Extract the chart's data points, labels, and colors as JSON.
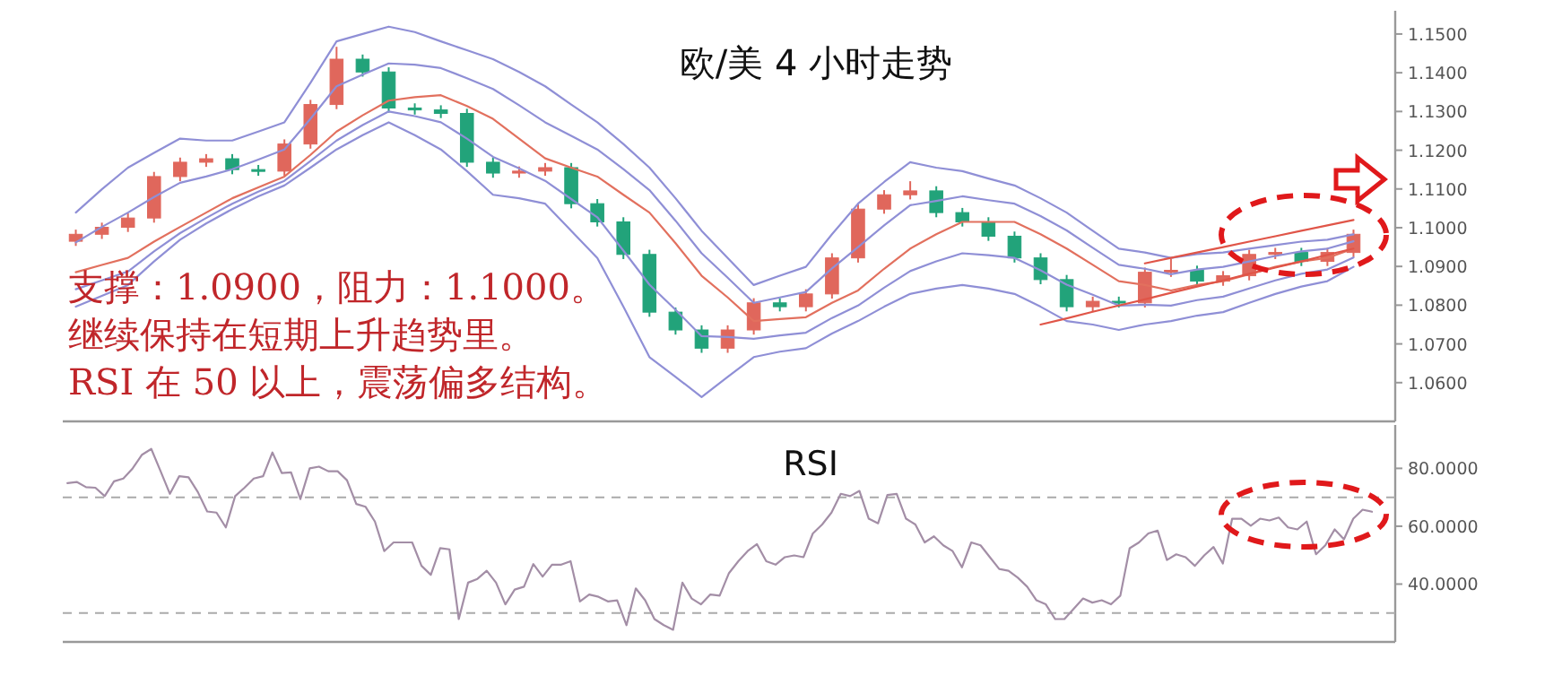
{
  "chart_data": [
    {
      "type": "candlestick",
      "title": "欧/美 4 小时走势",
      "categories": [
        null,
        null,
        null,
        null,
        null,
        null,
        null,
        null,
        null,
        null,
        null,
        null,
        null,
        null,
        null,
        null,
        null,
        null,
        null,
        null,
        null,
        null,
        null,
        null,
        null,
        null,
        null,
        null,
        null,
        null,
        null,
        null,
        null,
        null,
        null,
        null,
        null,
        null,
        null,
        null,
        null,
        null,
        null,
        null,
        null,
        null,
        null,
        null,
        null,
        null
      ],
      "ohlc": [
        [
          1.0965,
          1.0995,
          1.0953,
          1.0983
        ],
        [
          1.0983,
          1.1013,
          1.0971,
          1.1001
        ],
        [
          1.1001,
          1.1037,
          1.0989,
          1.1025
        ],
        [
          1.1025,
          1.1144,
          1.1013,
          1.1132
        ],
        [
          1.1132,
          1.1181,
          1.112,
          1.1169
        ],
        [
          1.1169,
          1.119,
          1.1157,
          1.1178
        ],
        [
          1.1178,
          1.119,
          1.1138,
          1.115
        ],
        [
          1.115,
          1.1162,
          1.1134,
          1.1146
        ],
        [
          1.1146,
          1.1228,
          1.1134,
          1.1216
        ],
        [
          1.1216,
          1.133,
          1.1204,
          1.1318
        ],
        [
          1.1318,
          1.1467,
          1.1306,
          1.1435
        ],
        [
          1.1435,
          1.1447,
          1.139,
          1.1402
        ],
        [
          1.1402,
          1.1414,
          1.1297,
          1.1309
        ],
        [
          1.1309,
          1.1321,
          1.1292,
          1.1304
        ],
        [
          1.1304,
          1.1316,
          1.1283,
          1.1295
        ],
        [
          1.1295,
          1.1307,
          1.1157,
          1.1169
        ],
        [
          1.1169,
          1.1181,
          1.1129,
          1.1141
        ],
        [
          1.1141,
          1.1158,
          1.1129,
          1.1146
        ],
        [
          1.1146,
          1.1167,
          1.1134,
          1.1155
        ],
        [
          1.1155,
          1.1167,
          1.105,
          1.1062
        ],
        [
          1.1062,
          1.1074,
          1.1003,
          1.1015
        ],
        [
          1.1015,
          1.1027,
          1.0919,
          1.0931
        ],
        [
          1.0931,
          1.0943,
          1.077,
          1.0782
        ],
        [
          1.0782,
          1.0794,
          1.0724,
          1.0736
        ],
        [
          1.0736,
          1.0748,
          1.0677,
          1.0689
        ],
        [
          1.0689,
          1.0748,
          1.0677,
          1.0736
        ],
        [
          1.0736,
          1.0818,
          1.0724,
          1.0806
        ],
        [
          1.0806,
          1.0818,
          1.0784,
          1.0796
        ],
        [
          1.0796,
          1.0841,
          1.0784,
          1.0829
        ],
        [
          1.0829,
          1.0934,
          1.0817,
          1.0922
        ],
        [
          1.0922,
          1.106,
          1.091,
          1.1048
        ],
        [
          1.1048,
          1.1097,
          1.1036,
          1.1085
        ],
        [
          1.1085,
          1.112,
          1.1073,
          1.1095
        ],
        [
          1.1095,
          1.1107,
          1.1027,
          1.1039
        ],
        [
          1.1039,
          1.1051,
          1.1003,
          1.1015
        ],
        [
          1.1015,
          1.1027,
          1.0966,
          1.0978
        ],
        [
          1.0978,
          1.099,
          1.091,
          1.0922
        ],
        [
          1.0922,
          1.0934,
          1.0854,
          1.0866
        ],
        [
          1.0866,
          1.0878,
          1.0784,
          1.0796
        ],
        [
          1.0796,
          1.0822,
          1.0784,
          1.081
        ],
        [
          1.081,
          1.0822,
          1.0794,
          1.0806
        ],
        [
          1.0806,
          1.0897,
          1.0794,
          1.0885
        ],
        [
          1.0885,
          1.092,
          1.0873,
          1.089
        ],
        [
          1.089,
          1.0902,
          1.085,
          1.0862
        ],
        [
          1.0862,
          1.0888,
          1.085,
          1.0876
        ],
        [
          1.0876,
          1.0943,
          1.0864,
          1.0931
        ],
        [
          1.0931,
          1.0948,
          1.0919,
          1.0936
        ],
        [
          1.0936,
          1.0948,
          1.0901,
          1.0913
        ],
        [
          1.0913,
          1.0948,
          1.0901,
          1.0936
        ],
        [
          1.0936,
          1.0995,
          1.0924,
          1.0983
        ]
      ],
      "colors": [
        "#e0675c",
        "#e0675c",
        "#e0675c",
        "#e0675c",
        "#e0675c",
        "#e0675c",
        "#22a37a",
        "#22a37a",
        "#e0675c",
        "#e0675c",
        "#e0675c",
        "#22a37a",
        "#22a37a",
        "#22a37a",
        "#22a37a",
        "#22a37a",
        "#22a37a",
        "#e0675c",
        "#e0675c",
        "#22a37a",
        "#22a37a",
        "#22a37a",
        "#22a37a",
        "#22a37a",
        "#22a37a",
        "#e0675c",
        "#e0675c",
        "#22a37a",
        "#e0675c",
        "#e0675c",
        "#e0675c",
        "#e0675c",
        "#e0675c",
        "#22a37a",
        "#22a37a",
        "#22a37a",
        "#22a37a",
        "#22a37a",
        "#22a37a",
        "#e0675c",
        "#22a37a",
        "#e0675c",
        "#e0675c",
        "#22a37a",
        "#e0675c",
        "#e0675c",
        "#e0675c",
        "#22a37a",
        "#e0675c",
        "#e0675c"
      ],
      "series": [
        {
          "type": "line",
          "color": "#8f8fd6",
          "values": [
            1.1039,
            1.1099,
            1.1155,
            1.1193,
            1.123,
            1.1225,
            1.1225,
            1.1248,
            1.1272,
            1.1374,
            1.1481,
            1.15,
            1.1519,
            1.1505,
            1.1481,
            1.1458,
            1.1435,
            1.1402,
            1.1365,
            1.1318,
            1.1272,
            1.1216,
            1.1155,
            1.1076,
            1.0992,
            1.0922,
            1.0852,
            1.0876,
            1.0899,
            1.0983,
            1.1062,
            1.1118,
            1.1169,
            1.1155,
            1.1146,
            1.1127,
            1.1109,
            1.1076,
            1.1039,
            1.0992,
            1.0946,
            1.0936,
            1.0922,
            1.0932,
            1.0936,
            1.0946,
            1.0955,
            1.0964,
            1.0969,
            1.0983
          ]
        },
        {
          "type": "line",
          "color": "#8f8fd6",
          "values": [
            1.0962,
            1.1002,
            1.1039,
            1.1079,
            1.1116,
            1.1132,
            1.1151,
            1.1176,
            1.1202,
            1.1281,
            1.1365,
            1.1395,
            1.1424,
            1.1421,
            1.1412,
            1.1386,
            1.1358,
            1.1316,
            1.1272,
            1.1237,
            1.1202,
            1.1151,
            1.1097,
            1.1018,
            1.0934,
            1.0871,
            1.0806,
            1.082,
            1.0834,
            1.0895,
            1.095,
            1.1006,
            1.1058,
            1.1069,
            1.1081,
            1.1071,
            1.1062,
            1.103,
            1.0993,
            1.0948,
            1.0904,
            1.0894,
            1.088,
            1.0892,
            1.0899,
            1.0913,
            1.0927,
            1.0939,
            1.0946,
            1.0965
          ]
        },
        {
          "type": "line",
          "color": "#e2705e",
          "values": [
            1.0885,
            1.0904,
            1.0922,
            1.0964,
            1.1002,
            1.1039,
            1.1076,
            1.1104,
            1.1132,
            1.1188,
            1.1248,
            1.129,
            1.1328,
            1.1337,
            1.1342,
            1.1314,
            1.1281,
            1.123,
            1.1179,
            1.1155,
            1.1132,
            1.1085,
            1.1039,
            1.096,
            1.0876,
            1.082,
            1.0759,
            1.0764,
            1.0769,
            1.0806,
            1.0838,
            1.0894,
            1.0946,
            1.0983,
            1.1015,
            1.1015,
            1.1015,
            1.0983,
            1.0946,
            1.0904,
            1.0862,
            1.0852,
            1.0838,
            1.0852,
            1.0862,
            1.088,
            1.0899,
            1.0913,
            1.0922,
            1.0946
          ]
        },
        {
          "type": "line",
          "color": "#8f8fd6",
          "values": [
            1.0841,
            1.0864,
            1.0887,
            1.0939,
            1.0986,
            1.1025,
            1.1062,
            1.1093,
            1.1121,
            1.1172,
            1.1225,
            1.1265,
            1.13,
            1.1288,
            1.1272,
            1.123,
            1.1183,
            1.1153,
            1.1121,
            1.1074,
            1.1027,
            1.0941,
            1.0853,
            1.0788,
            1.072,
            1.0718,
            1.0713,
            1.0722,
            1.0729,
            1.0767,
            1.0799,
            1.0845,
            1.0888,
            1.0913,
            1.0934,
            1.0929,
            1.0922,
            1.089,
            1.0853,
            1.0827,
            1.0799,
            1.0801,
            1.0799,
            1.0813,
            1.0822,
            1.0843,
            1.0864,
            1.0881,
            1.0892,
            1.0923
          ]
        },
        {
          "type": "line",
          "color": "#8f8fd6",
          "values": [
            1.0796,
            1.0824,
            1.0852,
            1.0913,
            1.0969,
            1.1011,
            1.1048,
            1.1081,
            1.1109,
            1.1155,
            1.1202,
            1.1239,
            1.1272,
            1.1239,
            1.1202,
            1.1146,
            1.1085,
            1.1076,
            1.1062,
            1.0992,
            1.0922,
            1.0796,
            1.0666,
            1.0615,
            1.0563,
            1.0615,
            1.0666,
            1.068,
            1.0689,
            1.0727,
            1.0759,
            1.0796,
            1.0829,
            1.0843,
            1.0852,
            1.0843,
            1.0829,
            1.0796,
            1.0759,
            1.075,
            1.0736,
            1.075,
            1.0759,
            1.0773,
            1.0782,
            1.0806,
            1.0829,
            1.0848,
            1.0862,
            1.0899
          ]
        },
        {
          "type": "line",
          "color": "#e05548",
          "values": [
            null,
            null,
            null,
            null,
            null,
            null,
            null,
            null,
            null,
            null,
            null,
            null,
            null,
            null,
            null,
            null,
            null,
            null,
            null,
            null,
            null,
            null,
            null,
            null,
            null,
            null,
            null,
            null,
            null,
            null,
            null,
            null,
            null,
            null,
            null,
            null,
            null,
            null,
            null,
            null,
            null,
            1.0908,
            1.0922,
            1.0936,
            1.095,
            1.0964,
            1.0978,
            1.0992,
            1.1006,
            1.102
          ]
        },
        {
          "type": "line",
          "color": "#e05548",
          "values": [
            null,
            null,
            null,
            null,
            null,
            null,
            null,
            null,
            null,
            null,
            null,
            null,
            null,
            null,
            null,
            null,
            null,
            null,
            null,
            null,
            null,
            null,
            null,
            null,
            null,
            null,
            null,
            null,
            null,
            null,
            null,
            null,
            null,
            null,
            null,
            null,
            null,
            1.075,
            1.0766,
            1.0783,
            1.0799,
            1.0815,
            1.0832,
            1.0848,
            1.0864,
            1.0881,
            1.0897,
            1.0913,
            1.093,
            1.0946
          ]
        }
      ],
      "ylim": [
        1.05,
        1.156
      ],
      "yticks": [
        {
          "value": 1.06,
          "label": "1.0600"
        },
        {
          "value": 1.07,
          "label": "1.0700"
        },
        {
          "value": 1.08,
          "label": "1.0800"
        },
        {
          "value": 1.09,
          "label": "1.0900"
        },
        {
          "value": 1.1,
          "label": "1.1000"
        },
        {
          "value": 1.11,
          "label": "1.1100"
        },
        {
          "value": 1.12,
          "label": "1.1200"
        },
        {
          "value": 1.13,
          "label": "1.1300"
        },
        {
          "value": 1.14,
          "label": "1.1400"
        },
        {
          "value": 1.15,
          "label": "1.1500"
        }
      ],
      "annotations": [
        "支撑：1.0900，阻力：1.1000。",
        "继续保持在短期上升趋势里。",
        "RSI 在 50 以上，震荡偏多结构。"
      ],
      "tick_labels": "y"
    },
    {
      "type": "line",
      "title": "RSI",
      "categories": [
        null,
        null,
        null,
        null,
        null,
        null,
        null,
        null,
        null,
        null,
        null,
        null,
        null,
        null,
        null,
        null,
        null,
        null,
        null,
        null,
        null,
        null,
        null,
        null,
        null,
        null,
        null,
        null,
        null,
        null,
        null,
        null,
        null,
        null,
        null,
        null,
        null,
        null,
        null,
        null,
        null,
        null,
        null,
        null,
        null,
        null,
        null,
        null,
        null,
        null,
        null,
        null,
        null,
        null,
        null,
        null,
        null,
        null,
        null,
        null,
        null,
        null,
        null,
        null,
        null,
        null,
        null,
        null,
        null,
        null,
        null,
        null,
        null,
        null,
        null,
        null,
        null,
        null,
        null,
        null,
        null,
        null,
        null,
        null,
        null,
        null,
        null,
        null,
        null,
        null,
        null,
        null,
        null,
        null,
        null,
        null,
        null,
        null,
        null,
        null,
        null,
        null,
        null,
        null,
        null,
        null,
        null,
        null,
        null,
        null,
        null,
        null,
        null,
        null,
        null,
        null,
        null,
        null,
        null,
        null,
        null,
        null,
        null,
        null,
        null,
        null,
        null,
        null,
        null,
        null,
        null,
        null,
        null,
        null,
        null,
        null,
        null,
        null,
        null,
        null,
        null
      ],
      "series": [
        {
          "color": "#a38ea6",
          "values": [
            74.9,
            75.3,
            73.5,
            73.3,
            70.4,
            75.5,
            76.5,
            80,
            84.7,
            86.7,
            79,
            71.2,
            77.3,
            76.9,
            71.8,
            65.1,
            64.7,
            59.6,
            70.4,
            73.3,
            76.5,
            77.3,
            85.5,
            78.4,
            78.6,
            69.4,
            80,
            80.6,
            79,
            79,
            75.9,
            67.7,
            66.7,
            61.6,
            51.4,
            54.4,
            54.4,
            54.4,
            46.3,
            43.2,
            52.4,
            52,
            27.9,
            40.5,
            41.8,
            44.6,
            40.5,
            33,
            38.1,
            39.1,
            46.9,
            42.6,
            46.7,
            46.7,
            47.9,
            34,
            36.4,
            35.6,
            34,
            34.4,
            25.8,
            38.5,
            34.4,
            27.9,
            25.8,
            24.2,
            40.5,
            35,
            33,
            36.4,
            36,
            43.8,
            47.9,
            51.4,
            53.8,
            47.9,
            46.7,
            49.3,
            49.9,
            49.3,
            57.5,
            60.6,
            64.7,
            71.2,
            70.4,
            72.2,
            62.6,
            61,
            70.8,
            71.2,
            62.6,
            60.6,
            54.4,
            56.5,
            53.4,
            51.4,
            45.8,
            54.4,
            53.4,
            49.3,
            45.2,
            44.6,
            42.2,
            39.1,
            34.4,
            33,
            27.9,
            27.9,
            31.5,
            35,
            33.6,
            34.4,
            33,
            36,
            52.4,
            54.4,
            57.5,
            58.5,
            48.3,
            50.3,
            49.3,
            46.3,
            49.9,
            52.8,
            47.1,
            62.6,
            62.6,
            60.2,
            62.6,
            62,
            63,
            59.6,
            58.9,
            61.6,
            50.3,
            53.4,
            58.9,
            55.5,
            62.6,
            65.7,
            65
          ]
        }
      ],
      "ylim": [
        20,
        95
      ],
      "yticks": [
        {
          "value": 40,
          "label": "40.0000"
        },
        {
          "value": 60,
          "label": "60.0000"
        },
        {
          "value": 80,
          "label": "80.0000"
        }
      ],
      "ref_lines": [
        {
          "axis": "y",
          "value": 70,
          "color": "#aaaaaa",
          "line_style": "dashed"
        },
        {
          "axis": "y",
          "value": 30,
          "color": "#aaaaaa",
          "line_style": "dashed"
        }
      ],
      "tick_labels": "y"
    }
  ]
}
